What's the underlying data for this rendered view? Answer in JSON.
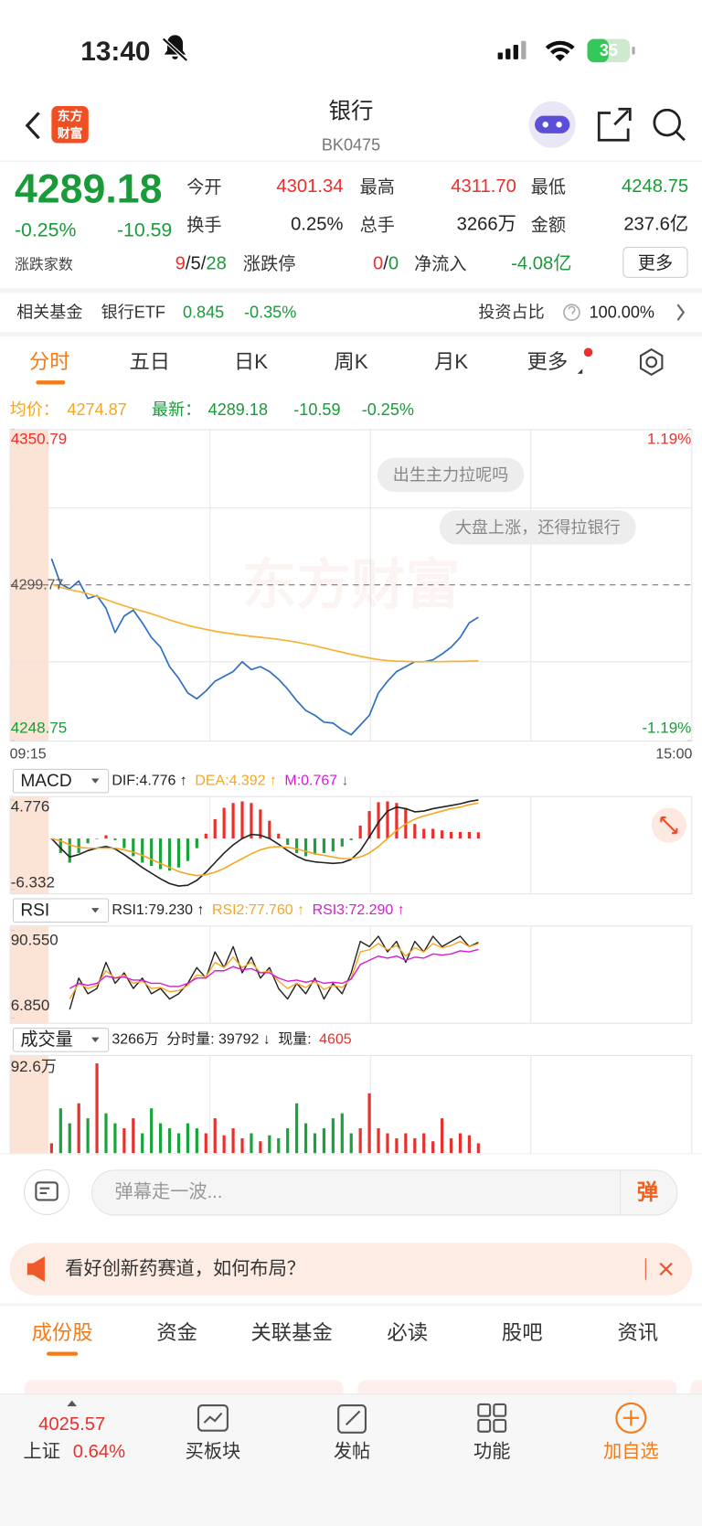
{
  "status": {
    "time": "13:40",
    "battery": "35"
  },
  "header": {
    "logo": [
      "东方",
      "财富"
    ],
    "title": "银行",
    "code": "BK0475"
  },
  "quote": {
    "price": "4289.18",
    "change_pct": "-0.25%",
    "change": "-10.59",
    "stats": [
      {
        "label": "今开",
        "value": "4301.34",
        "tone": "up"
      },
      {
        "label": "最高",
        "value": "4311.70",
        "tone": "up"
      },
      {
        "label": "最低",
        "value": "4248.75",
        "tone": "down"
      },
      {
        "label": "换手",
        "value": "0.25%",
        "tone": "flat"
      },
      {
        "label": "总手",
        "value": "3266万",
        "tone": "flat"
      },
      {
        "label": "金额",
        "value": "237.6亿",
        "tone": "flat"
      }
    ],
    "breadth": {
      "label": "涨跌家数",
      "parts": [
        {
          "text": "9",
          "tone": "up"
        },
        {
          "text": "/5/",
          "tone": "flat"
        },
        {
          "text": "28",
          "tone": "down"
        }
      ]
    },
    "limit": {
      "label": "涨跌停",
      "parts": [
        {
          "text": "0",
          "tone": "up"
        },
        {
          "text": "/",
          "tone": "flat"
        },
        {
          "text": "0",
          "tone": "down"
        }
      ]
    },
    "net_flow": {
      "label": "净流入",
      "value": "-4.08亿",
      "tone": "down"
    },
    "more": "更多"
  },
  "fund": {
    "label": "相关基金",
    "name": "银行ETF",
    "price": "0.845",
    "pct": "-0.35%",
    "ratio_label": "投资占比",
    "ratio": "100.00%"
  },
  "tabs": {
    "items": [
      "分时",
      "五日",
      "日K",
      "周K",
      "月K",
      "更多"
    ],
    "active": 0
  },
  "info": {
    "avg_label": "均价：",
    "avg": "4274.87",
    "latest_label": "最新：",
    "latest": "4289.18",
    "change": "-10.59",
    "pct": "-0.25%"
  },
  "chart_data": [
    {
      "type": "line",
      "series": [
        {
          "color": "#2f6fc2",
          "values": [
            4308.38,
            4300.09,
            4298.49,
            4301.04,
            4295.3,
            4296.26,
            4292.12,
            4284.14,
            4289.57,
            4291.48,
            4287.33,
            4282.55,
            4279.36,
            4272.98,
            4269.16,
            4264.37,
            4262.46,
            4265.01,
            4268.2,
            4269.79,
            4271.39,
            4274.58,
            4272.03,
            4272.98,
            4271.39,
            4268.84,
            4265.65,
            4261.82,
            4258.63,
            4257.04,
            4254.81,
            4254.49,
            4252.26,
            4250.66,
            4253.85,
            4257.04,
            4264.37,
            4268.2,
            4271.39,
            4272.98,
            4274.58,
            4274.58,
            4275.22,
            4277.13,
            4279.36,
            4282.55,
            4287.33,
            4289.18
          ]
        },
        {
          "color": "#f5b335",
          "values": [
            4300.1,
            4299.0,
            4298.2,
            4297.6,
            4296.9,
            4296.0,
            4295.0,
            4293.9,
            4292.9,
            4292.0,
            4291.2,
            4290.3,
            4289.3,
            4288.3,
            4287.4,
            4286.5,
            4285.8,
            4285.2,
            4284.6,
            4284.1,
            4283.7,
            4283.3,
            4282.9,
            4282.6,
            4282.3,
            4281.9,
            4281.5,
            4281.0,
            4280.4,
            4279.8,
            4279.1,
            4278.4,
            4277.7,
            4277.0,
            4276.4,
            4275.8,
            4275.3,
            4275.0,
            4274.8,
            4274.7,
            4274.6,
            4274.6,
            4274.6,
            4274.6,
            4274.7,
            4274.7,
            4274.8,
            4274.87
          ]
        }
      ],
      "ylim": [
        4248.75,
        4350.79
      ],
      "yticks": [
        4248.75,
        4299.77,
        4350.79
      ],
      "y2lim": [
        -1.19,
        1.19
      ],
      "y2ticks": [
        {
          "value": -1.19,
          "label": "-1.19%"
        },
        {
          "value": 1.19,
          "label": "1.19%"
        }
      ],
      "x_labels": [
        "09:15",
        "15:00"
      ],
      "annotations": [
        "出生主力拉呢吗",
        "大盘上涨，还得拉银行"
      ],
      "watermark": "东方财富"
    },
    {
      "type": "macd",
      "selector": "MACD",
      "legend": [
        {
          "text": "DIF:4.776 ↑",
          "color": "#222222"
        },
        {
          "text": "DEA:4.392 ↑",
          "color": "#f5a623"
        },
        {
          "text": "M:0.767 ↓",
          "color": "#d61ad6"
        }
      ],
      "ylim": [
        -6.332,
        4.776
      ],
      "yticks": [
        -6.332,
        4.776
      ],
      "bars": [
        0,
        -1.8,
        -3.0,
        -1.8,
        -0.6,
        0,
        0.4,
        -0.2,
        -1.2,
        -2.2,
        -3.0,
        -3.4,
        -3.8,
        -4.0,
        -3.6,
        -2.8,
        -1.2,
        0.6,
        2.4,
        3.8,
        4.4,
        4.6,
        4.4,
        3.6,
        2.2,
        0.6,
        -0.8,
        -1.8,
        -2.2,
        -2.0,
        -1.8,
        -1.6,
        -1.0,
        -0.2,
        1.6,
        3.4,
        4.5,
        4.6,
        4.4,
        3.8,
        1.8,
        1.2,
        1.2,
        1.0,
        0.8,
        0.8,
        0.8,
        0.767
      ],
      "series": [
        {
          "color": "#222222",
          "values": [
            0.0,
            -1.2,
            -2.3,
            -2.0,
            -1.5,
            -1.2,
            -1.0,
            -1.3,
            -2.0,
            -2.8,
            -3.6,
            -4.3,
            -5.0,
            -5.6,
            -5.9,
            -5.8,
            -5.2,
            -4.2,
            -3.0,
            -1.8,
            -0.8,
            0.0,
            0.5,
            0.4,
            0.0,
            -0.7,
            -1.5,
            -2.2,
            -2.7,
            -2.9,
            -3.0,
            -3.1,
            -3.0,
            -2.6,
            -1.5,
            0.2,
            2.0,
            3.4,
            3.9,
            3.7,
            3.3,
            3.4,
            3.7,
            3.9,
            4.1,
            4.3,
            4.6,
            4.776
          ]
        },
        {
          "color": "#f5a623",
          "values": [
            0.0,
            -0.3,
            -0.8,
            -1.1,
            -1.2,
            -1.2,
            -1.2,
            -1.2,
            -1.4,
            -1.7,
            -2.1,
            -2.6,
            -3.1,
            -3.6,
            -4.1,
            -4.4,
            -4.6,
            -4.5,
            -4.2,
            -3.7,
            -3.1,
            -2.5,
            -1.9,
            -1.4,
            -1.1,
            -1.0,
            -1.1,
            -1.3,
            -1.6,
            -1.9,
            -2.1,
            -2.3,
            -2.5,
            -2.5,
            -2.3,
            -1.8,
            -1.0,
            0.0,
            1.0,
            1.8,
            2.4,
            2.8,
            3.1,
            3.4,
            3.7,
            3.9,
            4.2,
            4.392
          ]
        }
      ]
    },
    {
      "type": "line",
      "selector": "RSI",
      "legend": [
        {
          "text": "RSI1:79.230 ↑",
          "color": "#222222"
        },
        {
          "text": "RSI2:77.760 ↑",
          "color": "#f5a623"
        },
        {
          "text": "RSI3:72.290 ↑",
          "color": "#d61ad6"
        }
      ],
      "ylim": [
        6.85,
        90.55
      ],
      "yticks": [
        {
          "value": 6.85,
          "label": "6.850"
        },
        {
          "value": 90.55,
          "label": "90.550"
        }
      ],
      "series": [
        {
          "color": "#222222",
          "values": [
            null,
            null,
            15,
            45,
            30,
            35,
            60,
            40,
            50,
            35,
            45,
            30,
            35,
            25,
            30,
            40,
            55,
            45,
            70,
            55,
            75,
            50,
            65,
            45,
            55,
            35,
            25,
            40,
            30,
            45,
            25,
            40,
            30,
            50,
            80,
            75,
            85,
            70,
            80,
            60,
            80,
            70,
            85,
            75,
            80,
            85,
            75,
            79.23
          ]
        },
        {
          "color": "#f5a623",
          "values": [
            null,
            null,
            25,
            40,
            35,
            38,
            52,
            45,
            48,
            40,
            42,
            35,
            36,
            32,
            33,
            38,
            48,
            46,
            60,
            55,
            65,
            55,
            60,
            50,
            52,
            42,
            35,
            40,
            36,
            42,
            34,
            38,
            36,
            45,
            70,
            72,
            78,
            72,
            76,
            66,
            74,
            70,
            78,
            74,
            76,
            80,
            75,
            77.76
          ]
        },
        {
          "color": "#d61ad6",
          "values": [
            null,
            null,
            35,
            40,
            38,
            40,
            47,
            45,
            46,
            43,
            43,
            40,
            40,
            37,
            37,
            40,
            45,
            45,
            52,
            52,
            56,
            53,
            54,
            50,
            50,
            45,
            42,
            43,
            41,
            43,
            40,
            41,
            40,
            44,
            58,
            62,
            66,
            64,
            66,
            62,
            65,
            64,
            68,
            67,
            68,
            71,
            70,
            72.29
          ]
        }
      ]
    },
    {
      "type": "bar",
      "selector": "成交量",
      "legend": [
        {
          "text": "3266万",
          "color": "#222222"
        },
        {
          "text": "分时量: 39792 ↓",
          "color": "#222222"
        },
        {
          "text": "现量:",
          "color": "#222222"
        },
        {
          "text": "4605",
          "color": "#e8302c"
        }
      ],
      "ylim": [
        0,
        92.6
      ],
      "yticks": [
        {
          "value": 92.6,
          "label": "92.6万"
        }
      ],
      "values": [
        10,
        45,
        30,
        50,
        35,
        90,
        40,
        30,
        25,
        35,
        20,
        45,
        30,
        25,
        20,
        30,
        25,
        20,
        35,
        18,
        25,
        15,
        20,
        12,
        18,
        15,
        25,
        50,
        30,
        20,
        25,
        35,
        40,
        20,
        25,
        60,
        25,
        20,
        15,
        20,
        15,
        20,
        12,
        35,
        15,
        20,
        18,
        10
      ]
    }
  ],
  "comment": {
    "placeholder": "弹幕走一波...",
    "button": "弹"
  },
  "banner": {
    "text": "看好创新药赛道，如何布局？"
  },
  "sections": {
    "items": [
      "成份股",
      "资金",
      "关联基金",
      "必读",
      "股吧",
      "资讯"
    ],
    "active": 0
  },
  "nav": {
    "index_value": "4025.57",
    "index_name": "上证",
    "index_pct": "0.64%",
    "items": [
      "买板块",
      "发帖",
      "功能",
      "加自选"
    ]
  }
}
